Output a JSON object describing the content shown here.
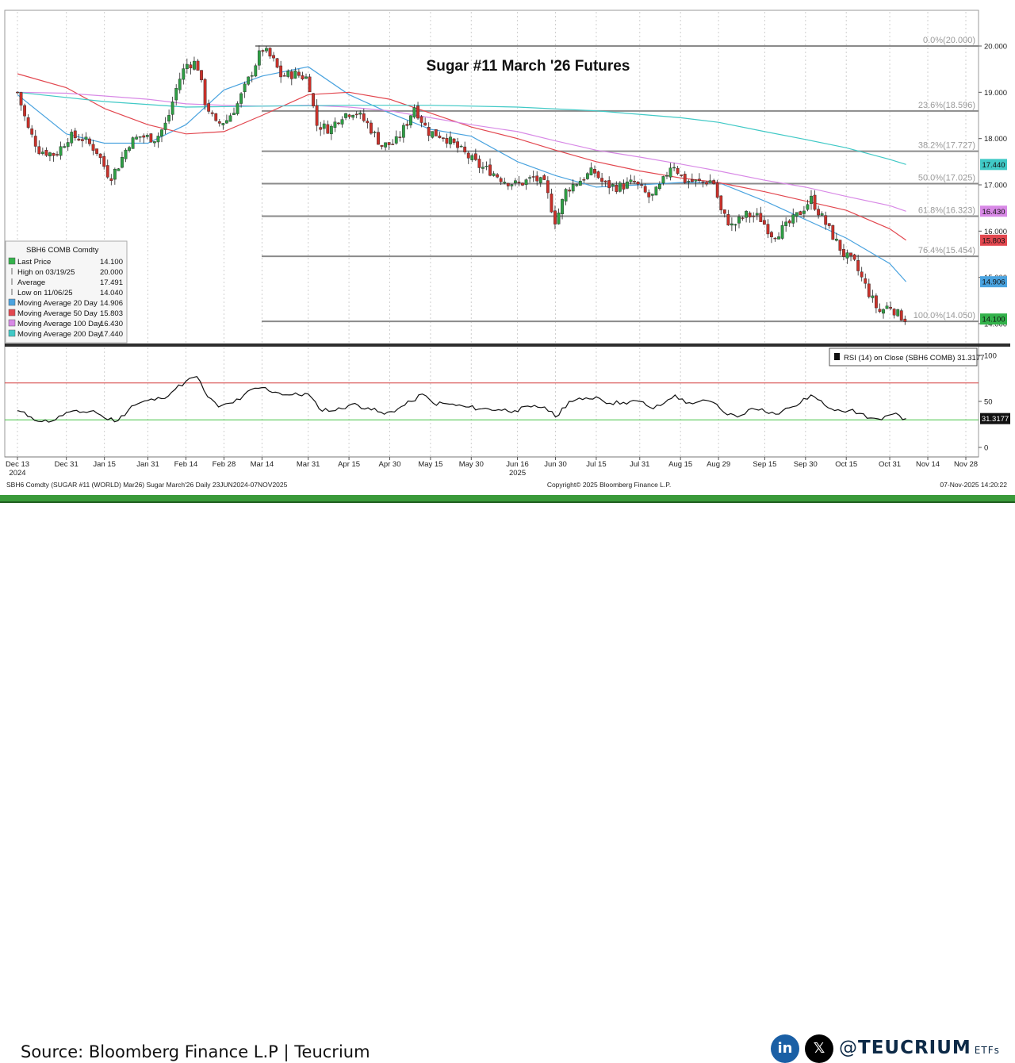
{
  "chart_data": {
    "type": "candlestick",
    "title": "Sugar #11 March '26 Futures",
    "ticker_header": "SBH6 COMB Comdty",
    "x_ticks": [
      "Dec 13",
      "Dec 31",
      "Jan 15",
      "Jan 31",
      "Feb 14",
      "Feb 28",
      "Mar 14",
      "Mar 31",
      "Apr 15",
      "Apr 30",
      "May 15",
      "May 30",
      "Jun 16",
      "Jun 30",
      "Jul 15",
      "Jul 31",
      "Aug 15",
      "Aug 29",
      "Sep 15",
      "Sep 30",
      "Oct 15",
      "Oct 31",
      "Nov 14",
      "Nov 28"
    ],
    "x_year_labels": [
      {
        "label": "2024",
        "under": "Dec 13"
      },
      {
        "label": "2025",
        "under": "Jun 16"
      }
    ],
    "price_axis": {
      "ylim": [
        13.6,
        20.35
      ],
      "ticks": [
        "20.000",
        "19.000",
        "18.000",
        "17.000",
        "16.000",
        "15.000",
        "14.000"
      ]
    },
    "price_path": [
      [
        "Dec 13",
        19.0
      ],
      [
        "Dec 17",
        18.2
      ],
      [
        "Dec 21",
        17.75
      ],
      [
        "Dec 27",
        17.65
      ],
      [
        "Jan 2",
        18.05
      ],
      [
        "Jan 7",
        18.0
      ],
      [
        "Jan 12",
        17.75
      ],
      [
        "Jan 17",
        17.15
      ],
      [
        "Jan 20",
        17.4
      ],
      [
        "Jan 24",
        17.9
      ],
      [
        "Jan 28",
        18.05
      ],
      [
        "Feb 3",
        18.0
      ],
      [
        "Feb 7",
        18.35
      ],
      [
        "Feb 11",
        19.2
      ],
      [
        "Feb 14",
        19.6
      ],
      [
        "Feb 18",
        19.65
      ],
      [
        "Feb 21",
        18.8
      ],
      [
        "Feb 25",
        18.3
      ],
      [
        "Mar 1",
        18.4
      ],
      [
        "Mar 5",
        18.75
      ],
      [
        "Mar 10",
        19.4
      ],
      [
        "Mar 14",
        19.95
      ],
      [
        "Mar 18",
        19.7
      ],
      [
        "Mar 21",
        19.35
      ],
      [
        "Mar 26",
        19.4
      ],
      [
        "Mar 31",
        19.3
      ],
      [
        "Apr 3",
        18.3
      ],
      [
        "Apr 8",
        18.2
      ],
      [
        "Apr 12",
        18.5
      ],
      [
        "Apr 17",
        18.6
      ],
      [
        "Apr 22",
        18.3
      ],
      [
        "Apr 27",
        17.85
      ],
      [
        "May 2",
        17.9
      ],
      [
        "May 6",
        18.3
      ],
      [
        "May 9",
        18.7
      ],
      [
        "May 14",
        18.15
      ],
      [
        "May 20",
        18.05
      ],
      [
        "May 26",
        17.75
      ],
      [
        "Jun 2",
        17.4
      ],
      [
        "Jun 6",
        17.3
      ],
      [
        "Jun 11",
        17.1
      ],
      [
        "Jun 16",
        17.0
      ],
      [
        "Jun 22",
        17.15
      ],
      [
        "Jun 26",
        17.0
      ],
      [
        "Jun 30",
        16.2
      ],
      [
        "Jul 4",
        16.9
      ],
      [
        "Jul 9",
        17.1
      ],
      [
        "Jul 14",
        17.3
      ],
      [
        "Jul 18",
        17.0
      ],
      [
        "Jul 23",
        16.95
      ],
      [
        "Jul 29",
        17.05
      ],
      [
        "Aug 4",
        16.7
      ],
      [
        "Aug 8",
        17.0
      ],
      [
        "Aug 12",
        17.5
      ],
      [
        "Aug 16",
        17.1
      ],
      [
        "Aug 22",
        17.05
      ],
      [
        "Aug 27",
        17.1
      ],
      [
        "Aug 30",
        16.4
      ],
      [
        "Sep 3",
        16.1
      ],
      [
        "Sep 8",
        16.35
      ],
      [
        "Sep 13",
        16.3
      ],
      [
        "Sep 18",
        15.9
      ],
      [
        "Sep 23",
        16.1
      ],
      [
        "Sep 28",
        16.4
      ],
      [
        "Oct 2",
        16.7
      ],
      [
        "Oct 6",
        16.3
      ],
      [
        "Oct 10",
        15.9
      ],
      [
        "Oct 14",
        15.5
      ],
      [
        "Oct 18",
        15.3
      ],
      [
        "Oct 23",
        14.7
      ],
      [
        "Oct 27",
        14.25
      ],
      [
        "Oct 31",
        14.4
      ],
      [
        "Nov 3",
        14.2
      ],
      [
        "Nov 6",
        14.1
      ]
    ],
    "fibonacci_levels": [
      {
        "label": "0.0%(20.000)",
        "value": 20.0
      },
      {
        "label": "23.6%(18.596)",
        "value": 18.596
      },
      {
        "label": "38.2%(17.727)",
        "value": 17.727
      },
      {
        "label": "50.0%(17.025)",
        "value": 17.025
      },
      {
        "label": "61.8%(16.323)",
        "value": 16.323
      },
      {
        "label": "76.4%(15.454)",
        "value": 15.454
      },
      {
        "label": "100.0%(14.050)",
        "value": 14.05
      }
    ],
    "moving_averages": [
      {
        "name": "Moving Average 20 Day",
        "color": "#4aa3df",
        "last": 14.906,
        "label": "14.906",
        "path": [
          [
            "Dec 13",
            18.95
          ],
          [
            "Dec 31",
            18.1
          ],
          [
            "Jan 15",
            17.9
          ],
          [
            "Jan 31",
            17.9
          ],
          [
            "Feb 14",
            18.3
          ],
          [
            "Feb 28",
            19.05
          ],
          [
            "Mar 14",
            19.35
          ],
          [
            "Mar 31",
            19.55
          ],
          [
            "Apr 15",
            18.95
          ],
          [
            "Apr 30",
            18.55
          ],
          [
            "May 15",
            18.2
          ],
          [
            "May 30",
            18.05
          ],
          [
            "Jun 16",
            17.5
          ],
          [
            "Jun 30",
            17.2
          ],
          [
            "Jul 15",
            16.95
          ],
          [
            "Jul 31",
            17.0
          ],
          [
            "Aug 15",
            17.05
          ],
          [
            "Aug 29",
            17.05
          ],
          [
            "Sep 15",
            16.65
          ],
          [
            "Sep 30",
            16.25
          ],
          [
            "Oct 15",
            15.85
          ],
          [
            "Oct 31",
            15.3
          ],
          [
            "Nov 6",
            14.906
          ]
        ]
      },
      {
        "name": "Moving Average 50 Day",
        "color": "#e2474f",
        "last": 15.803,
        "label": "15.803",
        "path": [
          [
            "Dec 13",
            19.4
          ],
          [
            "Dec 31",
            19.1
          ],
          [
            "Jan 15",
            18.65
          ],
          [
            "Jan 31",
            18.3
          ],
          [
            "Feb 14",
            18.1
          ],
          [
            "Feb 28",
            18.15
          ],
          [
            "Mar 14",
            18.5
          ],
          [
            "Mar 31",
            18.95
          ],
          [
            "Apr 15",
            19.0
          ],
          [
            "Apr 30",
            18.85
          ],
          [
            "May 15",
            18.55
          ],
          [
            "May 30",
            18.25
          ],
          [
            "Jun 16",
            18.0
          ],
          [
            "Jun 30",
            17.75
          ],
          [
            "Jul 15",
            17.5
          ],
          [
            "Jul 31",
            17.3
          ],
          [
            "Aug 15",
            17.15
          ],
          [
            "Aug 29",
            17.05
          ],
          [
            "Sep 15",
            16.85
          ],
          [
            "Sep 30",
            16.65
          ],
          [
            "Oct 15",
            16.45
          ],
          [
            "Oct 31",
            16.05
          ],
          [
            "Nov 6",
            15.803
          ]
        ]
      },
      {
        "name": "Moving Average 100 Day",
        "color": "#d889e6",
        "last": 16.43,
        "label": "16.430",
        "path": [
          [
            "Dec 13",
            19.0
          ],
          [
            "Dec 31",
            18.98
          ],
          [
            "Jan 15",
            18.92
          ],
          [
            "Jan 31",
            18.85
          ],
          [
            "Feb 14",
            18.75
          ],
          [
            "Feb 28",
            18.72
          ],
          [
            "Mar 14",
            18.7
          ],
          [
            "Mar 31",
            18.72
          ],
          [
            "Apr 15",
            18.68
          ],
          [
            "Apr 30",
            18.6
          ],
          [
            "May 15",
            18.45
          ],
          [
            "May 30",
            18.3
          ],
          [
            "Jun 16",
            18.15
          ],
          [
            "Jun 30",
            17.95
          ],
          [
            "Jul 15",
            17.75
          ],
          [
            "Jul 31",
            17.6
          ],
          [
            "Aug 15",
            17.45
          ],
          [
            "Aug 29",
            17.3
          ],
          [
            "Sep 15",
            17.1
          ],
          [
            "Sep 30",
            16.95
          ],
          [
            "Oct 15",
            16.75
          ],
          [
            "Oct 31",
            16.55
          ],
          [
            "Nov 6",
            16.43
          ]
        ]
      },
      {
        "name": "Moving Average 200 Day",
        "color": "#40c9c6",
        "last": 17.44,
        "label": "17.440",
        "path": [
          [
            "Dec 13",
            19.0
          ],
          [
            "Jan 15",
            18.8
          ],
          [
            "Feb 14",
            18.68
          ],
          [
            "Mar 14",
            18.7
          ],
          [
            "Apr 15",
            18.72
          ],
          [
            "May 15",
            18.72
          ],
          [
            "Jun 16",
            18.68
          ],
          [
            "Jul 15",
            18.6
          ],
          [
            "Aug 15",
            18.45
          ],
          [
            "Aug 29",
            18.35
          ],
          [
            "Sep 15",
            18.15
          ],
          [
            "Sep 30",
            17.98
          ],
          [
            "Oct 15",
            17.8
          ],
          [
            "Oct 31",
            17.55
          ],
          [
            "Nov 6",
            17.44
          ]
        ]
      }
    ],
    "legend": {
      "placement": "bottom-left",
      "header": "SBH6 COMB Comdty",
      "rows": [
        {
          "label": "Last Price",
          "value": "14.100",
          "color": "#33b24b"
        },
        {
          "label": "High on 03/19/25",
          "value": "20.000",
          "color": ""
        },
        {
          "label": "Average",
          "value": "17.491",
          "color": ""
        },
        {
          "label": "Low on 11/06/25",
          "value": "14.040",
          "color": ""
        },
        {
          "label": "Moving Average 20 Day",
          "value": "14.906",
          "color": "#4aa3df"
        },
        {
          "label": "Moving Average 50 Day",
          "value": "15.803",
          "color": "#e2474f"
        },
        {
          "label": "Moving Average 100 Day",
          "value": "16.430",
          "color": "#d889e6"
        },
        {
          "label": "Moving Average 200 Day",
          "value": "17.440",
          "color": "#40c9c6"
        }
      ]
    },
    "price_badges": [
      {
        "value": 17.44,
        "label": "17.440",
        "color": "#40c9c6"
      },
      {
        "value": 16.43,
        "label": "16.430",
        "color": "#d889e6"
      },
      {
        "value": 15.803,
        "label": "15.803",
        "color": "#e2474f"
      },
      {
        "value": 14.906,
        "label": "14.906",
        "color": "#4aa3df"
      },
      {
        "value": 14.1,
        "label": "14.100",
        "color": "#33b24b"
      }
    ],
    "rsi": {
      "legend": "RSI (14)  on Close (SBH6 COMB) 31.3177",
      "last": 31.3177,
      "last_label": "31.3177",
      "ylim": [
        0,
        100
      ],
      "ticks": [
        "100",
        "50",
        "0"
      ],
      "overbought": 70,
      "oversold": 30,
      "path": [
        [
          "Dec 13",
          40
        ],
        [
          "Dec 18",
          33
        ],
        [
          "Dec 22",
          28
        ],
        [
          "Dec 27",
          30
        ],
        [
          "Dec 31",
          38
        ],
        [
          "Jan 6",
          38
        ],
        [
          "Jan 11",
          40
        ],
        [
          "Jan 15",
          32
        ],
        [
          "Jan 20",
          29
        ],
        [
          "Jan 25",
          45
        ],
        [
          "Jan 31",
          51
        ],
        [
          "Feb 5",
          53
        ],
        [
          "Feb 10",
          63
        ],
        [
          "Feb 14",
          72
        ],
        [
          "Feb 18",
          77
        ],
        [
          "Feb 22",
          55
        ],
        [
          "Feb 26",
          44
        ],
        [
          "Mar 2",
          48
        ],
        [
          "Mar 6",
          52
        ],
        [
          "Mar 10",
          63
        ],
        [
          "Mar 14",
          65
        ],
        [
          "Mar 19",
          60
        ],
        [
          "Mar 24",
          57
        ],
        [
          "Mar 31",
          58
        ],
        [
          "Apr 4",
          42
        ],
        [
          "Apr 10",
          40
        ],
        [
          "Apr 16",
          47
        ],
        [
          "Apr 22",
          43
        ],
        [
          "Apr 28",
          36
        ],
        [
          "May 3",
          42
        ],
        [
          "May 8",
          50
        ],
        [
          "May 12",
          58
        ],
        [
          "May 16",
          48
        ],
        [
          "May 22",
          47
        ],
        [
          "May 28",
          44
        ],
        [
          "Jun 3",
          42
        ],
        [
          "Jun 9",
          41
        ],
        [
          "Jun 15",
          40
        ],
        [
          "Jun 21",
          44
        ],
        [
          "Jun 26",
          44
        ],
        [
          "Jun 30",
          33
        ],
        [
          "Jul 5",
          50
        ],
        [
          "Jul 10",
          52
        ],
        [
          "Jul 15",
          55
        ],
        [
          "Jul 20",
          48
        ],
        [
          "Jul 25",
          49
        ],
        [
          "Jul 31",
          50
        ],
        [
          "Aug 5",
          42
        ],
        [
          "Aug 9",
          48
        ],
        [
          "Aug 13",
          57
        ],
        [
          "Aug 17",
          48
        ],
        [
          "Aug 22",
          50
        ],
        [
          "Aug 27",
          49
        ],
        [
          "Aug 31",
          38
        ],
        [
          "Sep 5",
          33
        ],
        [
          "Sep 9",
          41
        ],
        [
          "Sep 14",
          42
        ],
        [
          "Sep 19",
          36
        ],
        [
          "Sep 24",
          43
        ],
        [
          "Sep 28",
          48
        ],
        [
          "Oct 2",
          57
        ],
        [
          "Oct 7",
          46
        ],
        [
          "Oct 12",
          41
        ],
        [
          "Oct 16",
          40
        ],
        [
          "Oct 20",
          37
        ],
        [
          "Oct 24",
          32
        ],
        [
          "Oct 28",
          30
        ],
        [
          "Nov 1",
          36
        ],
        [
          "Nov 6",
          31.3177
        ]
      ]
    },
    "volatility_note": "",
    "bottom_caption_left": "SBH6 Comdty (SUGAR #11 (WORLD) Mar26) Sugar March'26 Daily 23JUN2024-07NOV2025",
    "bottom_caption_center": "Copyright© 2025 Bloomberg Finance L.P.",
    "bottom_caption_right": "07-Nov-2025 14:20:22"
  },
  "footer": {
    "source": "Source: Bloomberg Finance L.P | Teucrium",
    "linkedin_icon": "linkedin-icon",
    "x_icon": "x-icon",
    "handle_prefix": "@",
    "handle_brand": "TEUCRIUM",
    "handle_suffix": "ETFs"
  },
  "colors": {
    "green_band": "#3a9a3a",
    "candle_up": "#2e9e44",
    "candle_down": "#c9312a",
    "rsi_overbought": "#d43b3b",
    "rsi_oversold": "#44c244"
  }
}
